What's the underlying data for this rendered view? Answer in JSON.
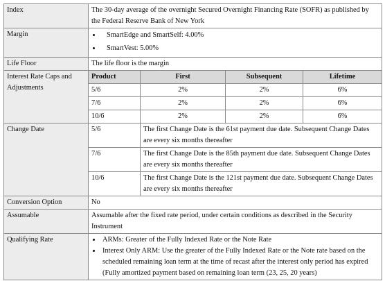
{
  "rows": [
    {
      "label": "Index",
      "text": "The 30-day average of the overnight Secured Overnight Financing Rate (SOFR) as published by the Federal Reserve Bank of New York"
    },
    {
      "label": "Margin",
      "bullets": [
        "SmartEdge and SmartSelf:  4.00%",
        "SmartVest:  5.00%"
      ]
    },
    {
      "label": "Life Floor",
      "text": "The life floor is the margin"
    },
    {
      "label": "Interest Rate Caps and Adjustments",
      "table": {
        "header": [
          "Product",
          "First",
          "Subsequent",
          "Lifetime"
        ],
        "rows": [
          [
            "5/6",
            "2%",
            "2%",
            "6%"
          ],
          [
            "7/6",
            "2%",
            "2%",
            "6%"
          ],
          [
            "10/6",
            "2%",
            "2%",
            "6%"
          ]
        ]
      }
    },
    {
      "label": "Change Date",
      "table": {
        "rows": [
          [
            "5/6",
            "The first Change Date is the 61st payment due date. Subsequent Change Dates are every six months thereafter"
          ],
          [
            "7/6",
            "The first Change Date is the 85th payment due date. Subsequent Change Dates are every six months thereafter"
          ],
          [
            "10/6",
            "The first Change Date is the 121st payment due date. Subsequent Change Dates are every six months thereafter"
          ]
        ]
      }
    },
    {
      "label": "Conversion Option",
      "text": "No"
    },
    {
      "label": "Assumable",
      "text": "Assumable after the fixed rate period, under certain conditions as described in the Security Instrument"
    },
    {
      "label": "Qualifying Rate",
      "bullets": [
        "ARMs:  Greater of the Fully Indexed Rate or the Note Rate",
        "Interest Only ARM: Use the greater of the Fully Indexed Rate or the Note rate based on the scheduled remaining loan term at the time of recast after the interest only period has expired (Fully amortized payment based on remaining loan term (23, 25, 20 years)"
      ]
    }
  ]
}
